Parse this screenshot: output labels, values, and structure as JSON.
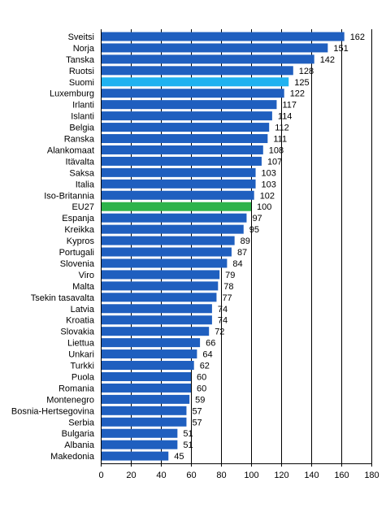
{
  "chart_data": {
    "type": "bar",
    "orientation": "horizontal",
    "categories": [
      "Sveitsi",
      "Norja",
      "Tanska",
      "Ruotsi",
      "Suomi",
      "Luxemburg",
      "Irlanti",
      "Islanti",
      "Belgia",
      "Ranska",
      "Alankomaat",
      "Itävalta",
      "Saksa",
      "Italia",
      "Iso-Britannia",
      "EU27",
      "Espanja",
      "Kreikka",
      "Kypros",
      "Portugali",
      "Slovenia",
      "Viro",
      "Malta",
      "Tsekin tasavalta",
      "Latvia",
      "Kroatia",
      "Slovakia",
      "Liettua",
      "Unkari",
      "Turkki",
      "Puola",
      "Romania",
      "Montenegro",
      "Bosnia-Hertsegovina",
      "Serbia",
      "Bulgaria",
      "Albania",
      "Makedonia"
    ],
    "values": [
      162,
      151,
      142,
      128,
      125,
      122,
      117,
      114,
      112,
      111,
      108,
      107,
      103,
      103,
      102,
      100,
      97,
      95,
      89,
      87,
      84,
      79,
      78,
      77,
      74,
      74,
      72,
      66,
      64,
      62,
      60,
      60,
      59,
      57,
      57,
      51,
      51,
      45
    ],
    "value_labels": [
      "162",
      "151",
      "142",
      "128",
      "125",
      "122",
      "117",
      "114",
      "112",
      "111",
      "108",
      "107",
      "103",
      "103",
      "102",
      "100",
      "97",
      "95",
      "89",
      "87",
      "84",
      "79",
      "78",
      "77",
      "74",
      "74",
      "72",
      "66",
      "64",
      "62",
      "60",
      "60",
      "59",
      "57",
      "57",
      "51",
      "51",
      "45"
    ],
    "xlim": [
      0,
      180
    ],
    "x_ticks": [
      "0",
      "20",
      "40",
      "60",
      "80",
      "100",
      "120",
      "140",
      "160",
      "180"
    ],
    "grid": "vertical",
    "colors": {
      "default": "#1f5fbf",
      "highlight_suomi": "#1fb2f0",
      "highlight_eu27": "#2db34a",
      "gridline": "#000000"
    },
    "highlight": {
      "Suomi": "highlight_suomi",
      "EU27": "highlight_eu27"
    }
  }
}
